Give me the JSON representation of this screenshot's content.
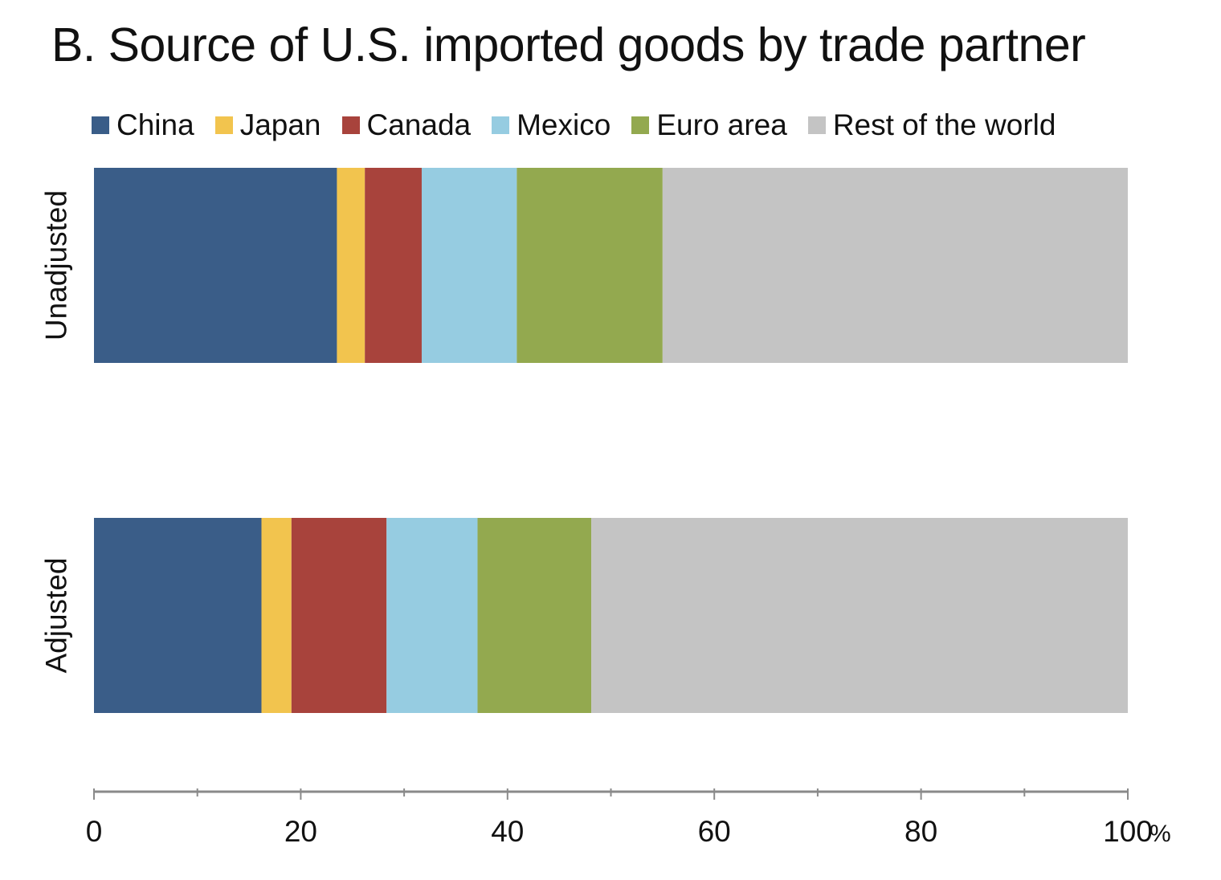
{
  "chart_data": {
    "type": "bar",
    "orientation": "horizontal",
    "stacked": true,
    "title": "B. Source of U.S. imported goods by trade partner",
    "categories": [
      "Unadjusted",
      "Adjusted"
    ],
    "series": [
      {
        "name": "China",
        "color": "#3a5d88",
        "values": [
          23.5,
          16.2
        ]
      },
      {
        "name": "Japan",
        "color": "#f2c44e",
        "values": [
          2.7,
          2.9
        ]
      },
      {
        "name": "Canada",
        "color": "#a8433c",
        "values": [
          5.5,
          9.2
        ]
      },
      {
        "name": "Mexico",
        "color": "#96cce1",
        "values": [
          9.2,
          8.8
        ]
      },
      {
        "name": "Euro area",
        "color": "#93a94f",
        "values": [
          14.1,
          11.0
        ]
      },
      {
        "name": "Rest of the world",
        "color": "#c4c4c4",
        "values": [
          45.0,
          51.9
        ]
      }
    ],
    "xlim": [
      0,
      100
    ],
    "x_ticks": [
      "0",
      "20",
      "40",
      "60",
      "80",
      "100"
    ],
    "x_unit": "%",
    "legend_position": "top",
    "grid": false
  }
}
